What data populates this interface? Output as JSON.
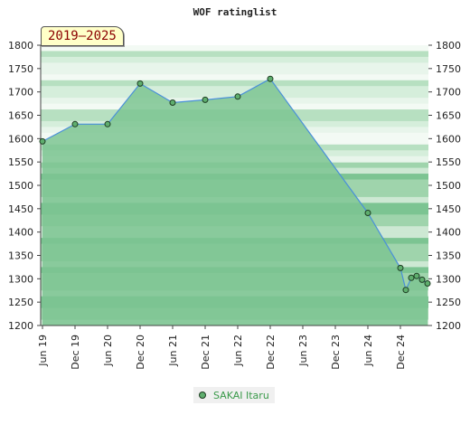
{
  "chart_data": {
    "type": "area",
    "title": "WOF ratinglist",
    "period_label": "2019–2025",
    "xlabel": "",
    "ylabel": "",
    "ylim": [
      1200,
      1800
    ],
    "y_ticks": [
      1200,
      1250,
      1300,
      1350,
      1400,
      1450,
      1500,
      1550,
      1600,
      1650,
      1700,
      1750,
      1800
    ],
    "x_ticks": [
      {
        "label": "Jun 19",
        "date": "2019-06"
      },
      {
        "label": "Dec 19",
        "date": "2019-12"
      },
      {
        "label": "Jun 20",
        "date": "2020-06"
      },
      {
        "label": "Dec 20",
        "date": "2020-12"
      },
      {
        "label": "Jun 21",
        "date": "2021-06"
      },
      {
        "label": "Dec 21",
        "date": "2021-12"
      },
      {
        "label": "Jun 22",
        "date": "2022-06"
      },
      {
        "label": "Dec 22",
        "date": "2022-12"
      },
      {
        "label": "Jun 23",
        "date": "2023-06"
      },
      {
        "label": "Dec 23",
        "date": "2023-12"
      },
      {
        "label": "Jun 24",
        "date": "2024-06"
      },
      {
        "label": "Dec 24",
        "date": "2024-12"
      }
    ],
    "series": [
      {
        "name": "SAKAI Itaru",
        "color": "#5fae6e",
        "points": [
          {
            "date": "2019-06",
            "value": 1594
          },
          {
            "date": "2019-12",
            "value": 1631
          },
          {
            "date": "2020-06",
            "value": 1631
          },
          {
            "date": "2020-12",
            "value": 1718
          },
          {
            "date": "2021-06",
            "value": 1677
          },
          {
            "date": "2021-12",
            "value": 1683
          },
          {
            "date": "2022-06",
            "value": 1690
          },
          {
            "date": "2022-12",
            "value": 1728
          },
          {
            "date": "2024-06",
            "value": 1441
          },
          {
            "date": "2024-12",
            "value": 1323
          },
          {
            "date": "2025-01",
            "value": 1276
          },
          {
            "date": "2025-02",
            "value": 1302
          },
          {
            "date": "2025-03",
            "value": 1306
          },
          {
            "date": "2025-04",
            "value": 1298
          },
          {
            "date": "2025-05",
            "value": 1290
          }
        ]
      }
    ],
    "grid": true,
    "legend_position": "bottom-center"
  },
  "colors": {
    "band_dark": "#7cc492",
    "band_mid": "#9fd4ac",
    "band_light": "#cde8d3",
    "area_fill": "#7cc492",
    "line": "#4a90d9",
    "marker": "#5fae6e"
  }
}
